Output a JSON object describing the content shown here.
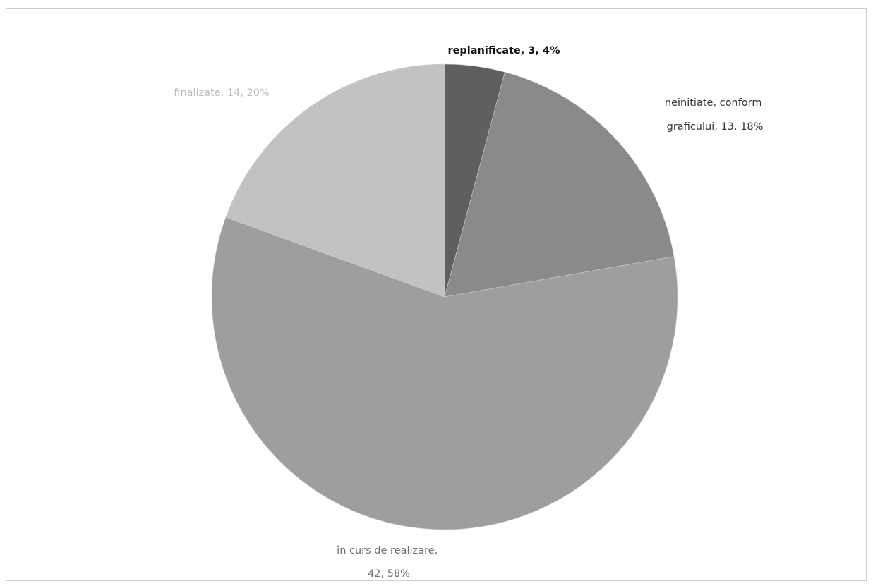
{
  "chart_data": {
    "type": "pie",
    "title": "",
    "slices": [
      {
        "label": "replanificate",
        "value": 3,
        "percent": "4%",
        "color": "#5f5f5f",
        "label_color": "#111111",
        "label_weight": "bold"
      },
      {
        "label": "neinitiate, conform graficului",
        "value": 13,
        "percent": "18%",
        "color": "#8a8a8a",
        "label_color": "#333333",
        "label_weight": "normal"
      },
      {
        "label": "în curs de realizare",
        "value": 42,
        "percent": "58%",
        "color": "#9e9e9e",
        "label_color": "#6f6f6f",
        "label_weight": "normal"
      },
      {
        "label": "finalizate",
        "value": 14,
        "percent": "20%",
        "color": "#c2c2c2",
        "label_color": "#bdbdbd",
        "label_weight": "normal"
      }
    ],
    "data_labels": [
      {
        "lines": [
          "replanificate, 3, 4%"
        ]
      },
      {
        "lines": [
          "neinitiate, conform",
          "graficului, 13, 18%"
        ]
      },
      {
        "lines": [
          "în curs de realizare,",
          "42, 58%"
        ]
      },
      {
        "lines": [
          "finalizate, 14, 20%"
        ]
      }
    ],
    "legend": "none"
  }
}
